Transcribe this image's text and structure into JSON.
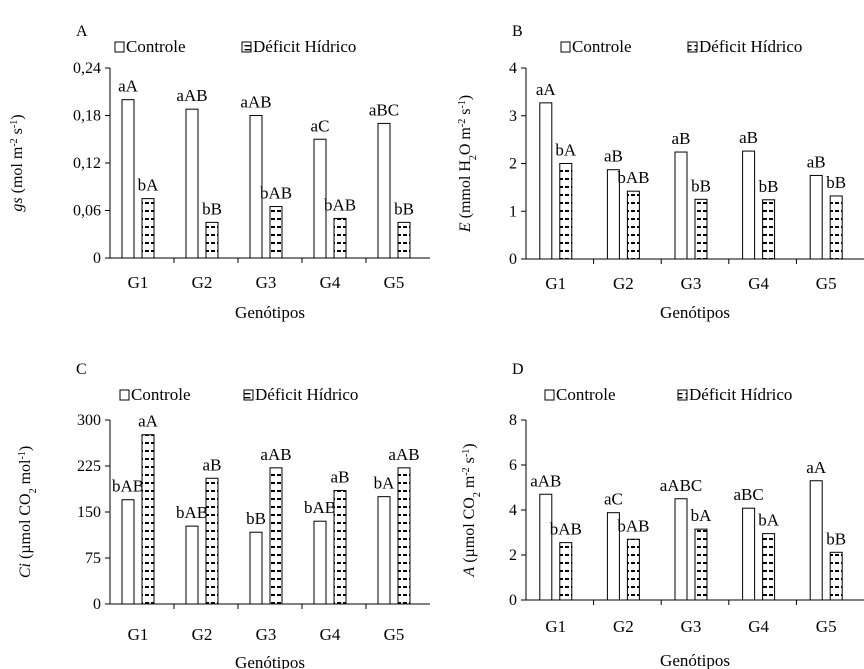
{
  "legend": {
    "control": "Controle",
    "deficit": "Déficit Hídrico"
  },
  "x_axis_title": "Genótipos",
  "chart_data": [
    {
      "panel": "A",
      "type": "bar",
      "ylabel": "gs (mol m-2 s-1)",
      "ylim": [
        0,
        0.24
      ],
      "yticks": [
        "0",
        "0,06",
        "0,12",
        "0,18",
        "0,24"
      ],
      "yticks_values": [
        0,
        0.06,
        0.12,
        0.18,
        0.24
      ],
      "categories": [
        "G1",
        "G2",
        "G3",
        "G4",
        "G5"
      ],
      "series": [
        {
          "name": "Controle",
          "values": [
            0.2,
            0.188,
            0.18,
            0.15,
            0.17
          ],
          "labels": [
            "aA",
            "aAB",
            "aAB",
            "aC",
            "aBC"
          ]
        },
        {
          "name": "Déficit Hídrico",
          "values": [
            0.075,
            0.045,
            0.065,
            0.05,
            0.045
          ],
          "labels": [
            "bA",
            "bB",
            "bAB",
            "bAB",
            "bB"
          ]
        }
      ]
    },
    {
      "panel": "B",
      "type": "bar",
      "ylabel": "E (mmol H2O m-2 s-1)",
      "ylim": [
        0,
        4
      ],
      "yticks": [
        "0",
        "1",
        "2",
        "3",
        "4"
      ],
      "yticks_values": [
        0,
        1,
        2,
        3,
        4
      ],
      "categories": [
        "G1",
        "G2",
        "G3",
        "G4",
        "G5"
      ],
      "series": [
        {
          "name": "Controle",
          "values": [
            3.27,
            1.87,
            2.24,
            2.26,
            1.75
          ],
          "labels": [
            "aA",
            "aB",
            "aB",
            "aB",
            "aB"
          ]
        },
        {
          "name": "Déficit Hídrico",
          "values": [
            2.0,
            1.42,
            1.25,
            1.24,
            1.32
          ],
          "labels": [
            "bA",
            "bAB",
            "bB",
            "bB",
            "bB"
          ]
        }
      ]
    },
    {
      "panel": "C",
      "type": "bar",
      "ylabel": "Ci (µmol CO2 mol-1)",
      "ylim": [
        0,
        300
      ],
      "yticks": [
        "0",
        "75",
        "150",
        "225",
        "300"
      ],
      "yticks_values": [
        0,
        75,
        150,
        225,
        300
      ],
      "categories": [
        "G1",
        "G2",
        "G3",
        "G4",
        "G5"
      ],
      "series": [
        {
          "name": "Controle",
          "values": [
            170,
            127,
            117,
            135,
            175
          ],
          "labels": [
            "bAB",
            "bAB",
            "bB",
            "bAB",
            "bA"
          ]
        },
        {
          "name": "Déficit Hídrico",
          "values": [
            276,
            205,
            222,
            185,
            222
          ],
          "labels": [
            "aA",
            "aB",
            "aAB",
            "aB",
            "aAB"
          ]
        }
      ]
    },
    {
      "panel": "D",
      "type": "bar",
      "ylabel": "A (µmol CO2 m-2 s-1)",
      "ylim": [
        0,
        8
      ],
      "yticks": [
        "0",
        "2",
        "4",
        "6",
        "8"
      ],
      "yticks_values": [
        0,
        2,
        4,
        6,
        8
      ],
      "categories": [
        "G1",
        "G2",
        "G3",
        "G4",
        "G5"
      ],
      "series": [
        {
          "name": "Controle",
          "values": [
            4.7,
            3.88,
            4.5,
            4.08,
            5.3
          ],
          "labels": [
            "aAB",
            "aC",
            "aABC",
            "aBC",
            "aA"
          ]
        },
        {
          "name": "Déficit Hídrico",
          "values": [
            2.55,
            2.7,
            3.15,
            2.95,
            2.12
          ],
          "labels": [
            "bAB",
            "bAB",
            "bA",
            "bA",
            "bB"
          ]
        }
      ]
    }
  ]
}
